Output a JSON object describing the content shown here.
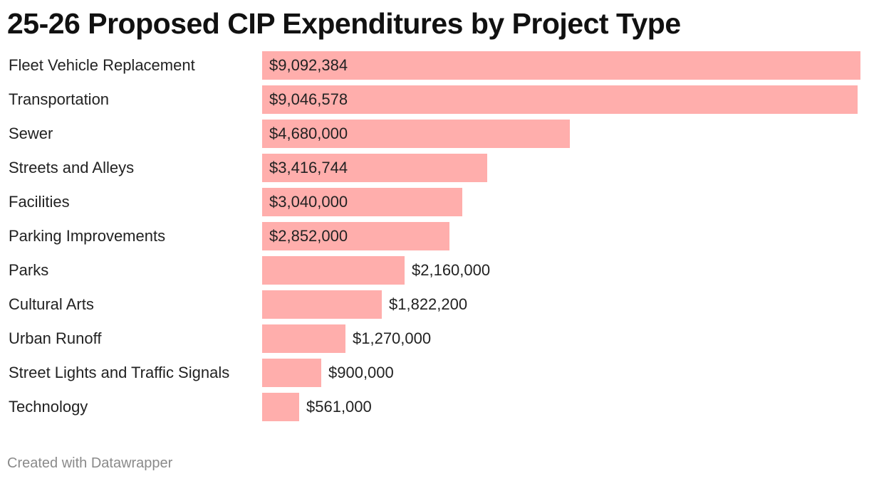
{
  "chart_data": {
    "type": "bar",
    "orientation": "horizontal",
    "title": "25-26 Proposed CIP Expenditures by Project Type",
    "xlabel": "",
    "ylabel": "",
    "xlim": [
      0,
      9092384
    ],
    "grid": false,
    "bar_color": "#ffaeac",
    "categories": [
      "Fleet Vehicle Replacement",
      "Transportation",
      "Sewer",
      "Streets and Alleys",
      "Facilities",
      "Parking Improvements",
      "Parks",
      "Cultural Arts",
      "Urban Runoff",
      "Street Lights and Traffic Signals",
      "Technology"
    ],
    "values": [
      9092384,
      9046578,
      4680000,
      3416744,
      3040000,
      2852000,
      2160000,
      1822200,
      1270000,
      900000,
      561000
    ],
    "value_labels": [
      "$9,092,384",
      "$9,046,578",
      "$4,680,000",
      "$3,416,744",
      "$3,040,000",
      "$2,852,000",
      "$2,160,000",
      "$1,822,200",
      "$1,270,000",
      "$900,000",
      "$561,000"
    ]
  },
  "footer": {
    "credit": "Created with Datawrapper"
  }
}
